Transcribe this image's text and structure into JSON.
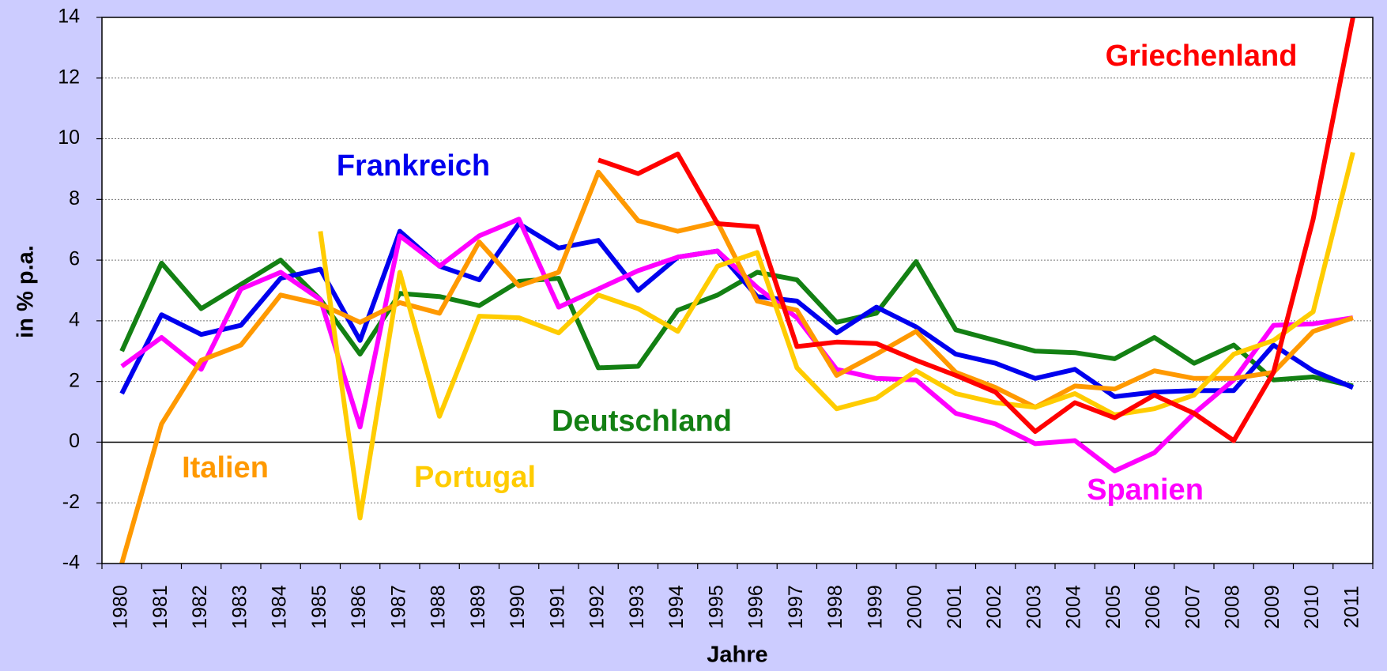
{
  "chart_data": {
    "type": "line",
    "xlabel": "Jahre",
    "ylabel": "in % p.a.",
    "categories": [
      "1980",
      "1981",
      "1982",
      "1983",
      "1984",
      "1985",
      "1986",
      "1987",
      "1988",
      "1989",
      "1990",
      "1991",
      "1992",
      "1993",
      "1994",
      "1995",
      "1996",
      "1997",
      "1998",
      "1999",
      "2000",
      "2001",
      "2002",
      "2003",
      "2004",
      "2005",
      "2006",
      "2007",
      "2008",
      "2009",
      "2010",
      "2011"
    ],
    "ylim": [
      -4,
      14
    ],
    "yticks": [
      -4,
      -2,
      0,
      2,
      4,
      6,
      8,
      10,
      12,
      14
    ],
    "grid": true,
    "series": [
      {
        "name": "Deutschland",
        "color": "#138013",
        "values": [
          3.0,
          5.9,
          4.4,
          5.2,
          6.0,
          4.7,
          2.9,
          4.9,
          4.8,
          4.5,
          5.3,
          5.4,
          2.45,
          2.5,
          4.35,
          4.85,
          5.6,
          5.35,
          3.95,
          4.25,
          5.95,
          3.7,
          3.35,
          3.0,
          2.95,
          2.75,
          3.45,
          2.6,
          3.2,
          2.05,
          2.15,
          1.85
        ]
      },
      {
        "name": "Frankreich",
        "color": "#0000ee",
        "values": [
          1.6,
          4.2,
          3.55,
          3.85,
          5.4,
          5.7,
          3.35,
          6.95,
          5.8,
          5.35,
          7.2,
          6.4,
          6.65,
          5.0,
          6.1,
          6.3,
          4.8,
          4.65,
          3.6,
          4.45,
          3.8,
          2.9,
          2.6,
          2.1,
          2.4,
          1.5,
          1.65,
          1.7,
          1.7,
          3.2,
          2.35,
          1.8
        ]
      },
      {
        "name": "Spanien",
        "color": "#ff00ff",
        "values": [
          2.5,
          3.45,
          2.4,
          5.05,
          5.6,
          4.7,
          0.5,
          6.8,
          5.8,
          6.8,
          7.35,
          4.45,
          5.05,
          5.65,
          6.1,
          6.3,
          5.1,
          4.1,
          2.4,
          2.1,
          2.05,
          0.95,
          0.6,
          -0.05,
          0.05,
          -0.95,
          -0.35,
          0.95,
          2.05,
          3.85,
          3.9,
          4.1
        ]
      },
      {
        "name": "Italien",
        "color": "#ff9900",
        "values": [
          -4,
          0.6,
          2.7,
          3.2,
          4.85,
          4.55,
          3.95,
          4.6,
          4.25,
          6.6,
          5.15,
          5.6,
          8.9,
          7.3,
          6.95,
          7.25,
          4.65,
          4.35,
          2.2,
          2.9,
          3.65,
          2.3,
          1.8,
          1.15,
          1.85,
          1.75,
          2.35,
          2.1,
          2.1,
          2.3,
          3.65,
          4.1
        ]
      },
      {
        "name": "Portugal",
        "color": "#ffcc00",
        "values": [
          null,
          null,
          null,
          null,
          null,
          6.95,
          -2.5,
          5.6,
          0.85,
          4.15,
          4.1,
          3.6,
          4.85,
          4.4,
          3.65,
          5.8,
          6.25,
          2.45,
          1.1,
          1.45,
          2.35,
          1.6,
          1.3,
          1.15,
          1.6,
          0.9,
          1.1,
          1.55,
          2.9,
          3.35,
          4.3,
          9.55
        ]
      },
      {
        "name": "Griechenland",
        "color": "#ff0000",
        "values": [
          null,
          null,
          null,
          null,
          null,
          null,
          null,
          null,
          null,
          null,
          null,
          null,
          9.3,
          8.85,
          9.5,
          7.2,
          7.1,
          3.15,
          3.3,
          3.25,
          2.7,
          2.2,
          1.65,
          0.35,
          1.3,
          0.8,
          1.55,
          0.95,
          0.05,
          2.3,
          7.35,
          14
        ]
      }
    ]
  }
}
